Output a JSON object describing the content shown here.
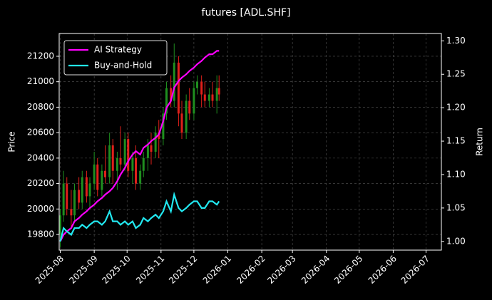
{
  "chart_data": {
    "type": "candlestick",
    "title": "futures [ADL.SHF]",
    "ylabel": "Price",
    "y2label": "Return",
    "x": [
      "2025-08-01",
      "2025-08-04",
      "2025-08-07",
      "2025-08-11",
      "2025-08-14",
      "2025-08-18",
      "2025-08-21",
      "2025-08-25",
      "2025-08-28",
      "2025-09-01",
      "2025-09-04",
      "2025-09-08",
      "2025-09-11",
      "2025-09-15",
      "2025-09-18",
      "2025-09-22",
      "2025-09-25",
      "2025-09-29",
      "2025-10-02",
      "2025-10-06",
      "2025-10-09",
      "2025-10-13",
      "2025-10-16",
      "2025-10-20",
      "2025-10-23",
      "2025-10-27",
      "2025-10-30",
      "2025-11-03",
      "2025-11-06",
      "2025-11-10",
      "2025-11-13",
      "2025-11-17",
      "2025-11-20",
      "2025-11-24",
      "2025-11-27",
      "2025-12-01",
      "2025-12-04",
      "2025-12-08",
      "2025-12-11",
      "2025-12-15",
      "2025-12-18",
      "2025-12-22",
      "2025-12-24"
    ],
    "open": [
      19800,
      19950,
      20200,
      20000,
      19950,
      20150,
      20050,
      20250,
      20100,
      20200,
      20350,
      20150,
      20300,
      20250,
      20500,
      20300,
      20400,
      20350,
      20550,
      20300,
      20400,
      20200,
      20300,
      20400,
      20500,
      20450,
      20600,
      20550,
      20750,
      20950,
      20850,
      21150,
      20750,
      20600,
      20850,
      20750,
      20950,
      21000,
      20900,
      20850,
      20900,
      20850,
      20950
    ],
    "high": [
      20000,
      20300,
      20250,
      20150,
      20200,
      20250,
      20300,
      20300,
      20250,
      20450,
      20400,
      20350,
      20500,
      20600,
      20550,
      20450,
      20650,
      20600,
      20600,
      20450,
      20500,
      20350,
      20450,
      20550,
      20600,
      20650,
      20700,
      20800,
      21000,
      21050,
      21300,
      21200,
      20850,
      20900,
      20950,
      21000,
      21050,
      21050,
      21000,
      20950,
      21000,
      21050,
      21050
    ],
    "low": [
      19700,
      19900,
      19950,
      19850,
      19900,
      20000,
      20000,
      20050,
      20000,
      20150,
      20100,
      20100,
      20200,
      20200,
      20200,
      20150,
      20300,
      20300,
      20250,
      20200,
      20150,
      20150,
      20250,
      20300,
      20350,
      20400,
      20400,
      20500,
      20700,
      20800,
      20800,
      20650,
      20550,
      20550,
      20700,
      20700,
      20900,
      20800,
      20800,
      20800,
      20800,
      20750,
      20850
    ],
    "close": [
      19950,
      20200,
      20000,
      19950,
      20150,
      20050,
      20250,
      20100,
      20200,
      20350,
      20150,
      20300,
      20250,
      20500,
      20300,
      20400,
      20350,
      20550,
      20300,
      20400,
      20200,
      20300,
      20400,
      20500,
      20450,
      20600,
      20550,
      20750,
      20950,
      20850,
      21150,
      20750,
      20600,
      20850,
      20750,
      20950,
      21000,
      20900,
      20850,
      20900,
      20850,
      20950,
      20900
    ],
    "up_color": "#1f8f1f",
    "down_color": "#e0201a",
    "series": [
      {
        "name": "AI Strategy",
        "type": "line",
        "axis": "y2",
        "color": "#ff00ff",
        "values": [
          1.0,
          1.01,
          1.015,
          1.02,
          1.03,
          1.035,
          1.04,
          1.045,
          1.05,
          1.055,
          1.06,
          1.065,
          1.07,
          1.075,
          1.08,
          1.09,
          1.1,
          1.11,
          1.12,
          1.13,
          1.135,
          1.13,
          1.14,
          1.145,
          1.15,
          1.155,
          1.16,
          1.18,
          1.2,
          1.21,
          1.23,
          1.24,
          1.245,
          1.25,
          1.255,
          1.26,
          1.265,
          1.27,
          1.275,
          1.28,
          1.28,
          1.285,
          1.285
        ]
      },
      {
        "name": "Buy-and-Hold",
        "type": "line",
        "axis": "y2",
        "color": "#22e8f0",
        "values": [
          1.0,
          1.02,
          1.015,
          1.01,
          1.02,
          1.02,
          1.025,
          1.02,
          1.025,
          1.03,
          1.03,
          1.025,
          1.03,
          1.045,
          1.03,
          1.03,
          1.025,
          1.03,
          1.025,
          1.03,
          1.02,
          1.025,
          1.035,
          1.03,
          1.035,
          1.04,
          1.035,
          1.045,
          1.06,
          1.045,
          1.07,
          1.05,
          1.045,
          1.05,
          1.055,
          1.06,
          1.06,
          1.05,
          1.05,
          1.06,
          1.06,
          1.055,
          1.06
        ]
      }
    ],
    "xlim": [
      "2025-07-31",
      "2026-07-15"
    ],
    "xticks": [
      {
        "value": "2025-08-01",
        "label": "2025-08"
      },
      {
        "value": "2025-09-01",
        "label": "2025-09"
      },
      {
        "value": "2025-10-01",
        "label": "2025-10"
      },
      {
        "value": "2025-11-01",
        "label": "2025-11"
      },
      {
        "value": "2025-12-01",
        "label": "2025-12"
      },
      {
        "value": "2026-01-01",
        "label": "2026-01"
      },
      {
        "value": "2026-02-01",
        "label": "2026-02"
      },
      {
        "value": "2026-03-01",
        "label": "2026-03"
      },
      {
        "value": "2026-04-01",
        "label": "2026-04"
      },
      {
        "value": "2026-05-01",
        "label": "2026-05"
      },
      {
        "value": "2026-06-01",
        "label": "2026-06"
      },
      {
        "value": "2026-07-01",
        "label": "2026-07"
      }
    ],
    "ylim": [
      19677,
      21379
    ],
    "yticks": [
      19800,
      20000,
      20200,
      20400,
      20600,
      20800,
      21000,
      21200
    ],
    "y2lim": [
      0.987,
      1.311
    ],
    "y2ticks": [
      {
        "value": 1,
        "label": "1.00"
      },
      1.05,
      {
        "value": 1.1,
        "label": "1.10"
      },
      1.15,
      {
        "value": 1.2,
        "label": "1.20"
      },
      1.25,
      {
        "value": 1.3,
        "label": "1.30"
      }
    ],
    "grid": true,
    "legend": "upper left"
  }
}
